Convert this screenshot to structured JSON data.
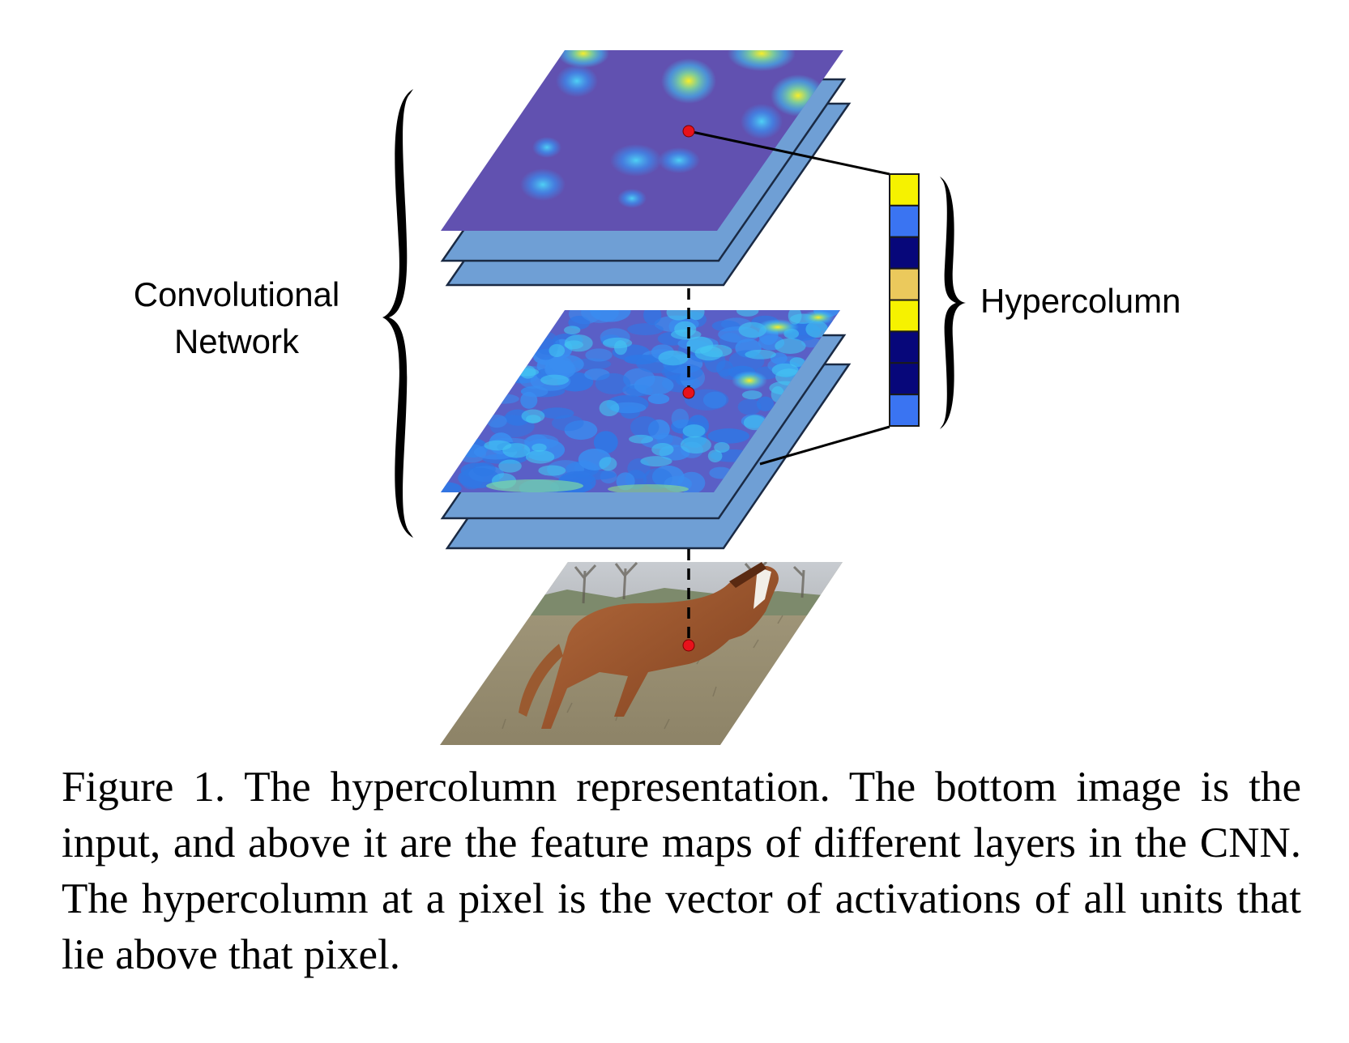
{
  "labels": {
    "network": [
      "Convolutional",
      "Network"
    ],
    "hypercolumn": "Hypercolumn"
  },
  "hypercolumn_cells": [
    "#f6f200",
    "#3a74f2",
    "#07077a",
    "#ebc95c",
    "#f6f200",
    "#07077a",
    "#07077a",
    "#3a74f2"
  ],
  "colors": {
    "map_base": "#6151b0",
    "map_stack": "#6f9fd5",
    "map_stack_stroke": "#1a2a44",
    "pixel_dot": "#e8121b",
    "hot_yellow": "#f8ee2a",
    "cyan": "#3fb9f0"
  },
  "caption": "Figure 1. The hypercolumn representation. The bottom image is the input, and above it are the feature maps of different layers in the CNN. The hypercolumn at a pixel is the vector of activations of all units that lie above that pixel."
}
